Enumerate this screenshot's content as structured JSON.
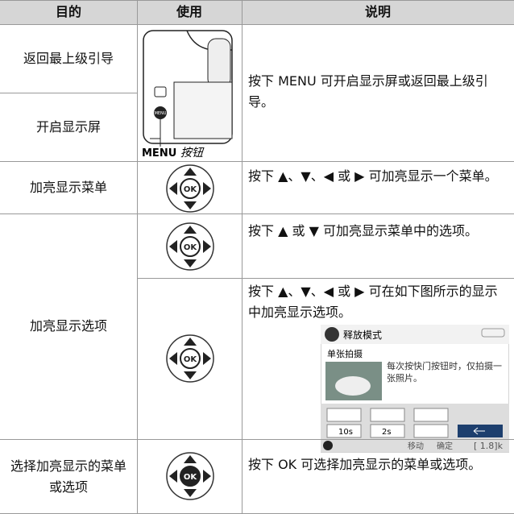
{
  "header": [
    "目的",
    "使用",
    "说明"
  ],
  "rows": [
    {
      "purpose": [
        "返回最上级引导",
        "开启显示屏"
      ],
      "caption": [
        "MENU",
        "按钮"
      ],
      "description": [
        "按下 MENU 可开启显示屏或返回最上级引导。"
      ]
    },
    {
      "purpose": [
        "加亮显示菜单"
      ],
      "description": [
        "按下 ▲、▼、◀ 或 ▶ 可加亮显示一个菜单。"
      ]
    },
    {
      "purpose": [
        "加亮显示选项"
      ],
      "description": [
        "按下 ▲ 或 ▼ 可加亮显示菜单中的选项。",
        "按下 ▲、▼、◀ 或 ▶ 可在如下图所示的显示中加亮显示选项。"
      ]
    },
    {
      "purpose": [
        "选择加亮显示的菜单或选项"
      ],
      "description": [
        "按下 OK 可选择加亮显示的菜单或选项。"
      ]
    }
  ],
  "screen": {
    "title": "释放模式",
    "option": "单张拍摄",
    "help": "每次按快门按钮时，仅拍摄一张照片。",
    "timer1": "10s",
    "timer2": "2s",
    "move": "移动",
    "confirm": "确定",
    "remaining": "[ 1.8]k"
  },
  "ok": "OK"
}
